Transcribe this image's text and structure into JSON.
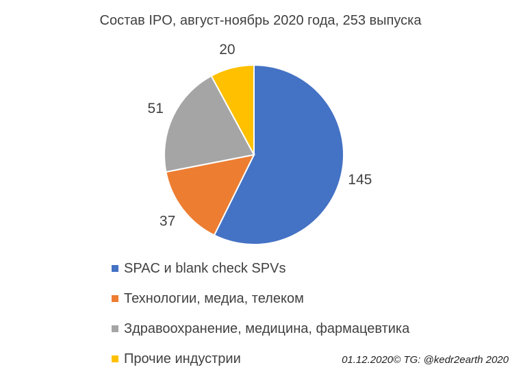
{
  "chart_data": {
    "type": "pie",
    "title": "Состав IPO, август-ноябрь 2020 года, 253 выпуска",
    "slices": [
      {
        "label": "SPAC и blank check SPVs",
        "value": 145,
        "color": "#4472C4"
      },
      {
        "label": "Технологии,  медиа, телеком",
        "value": 37,
        "color": "#ED7D31"
      },
      {
        "label": "Здравоохранение,  медицина, фармацевтика",
        "value": 51,
        "color": "#A5A5A5"
      },
      {
        "label": "Прочие индустрии",
        "value": 20,
        "color": "#FFC000"
      }
    ],
    "legend_position": "bottom-left"
  },
  "credit": "01.12.2020© TG: @kedr2earth 2020"
}
